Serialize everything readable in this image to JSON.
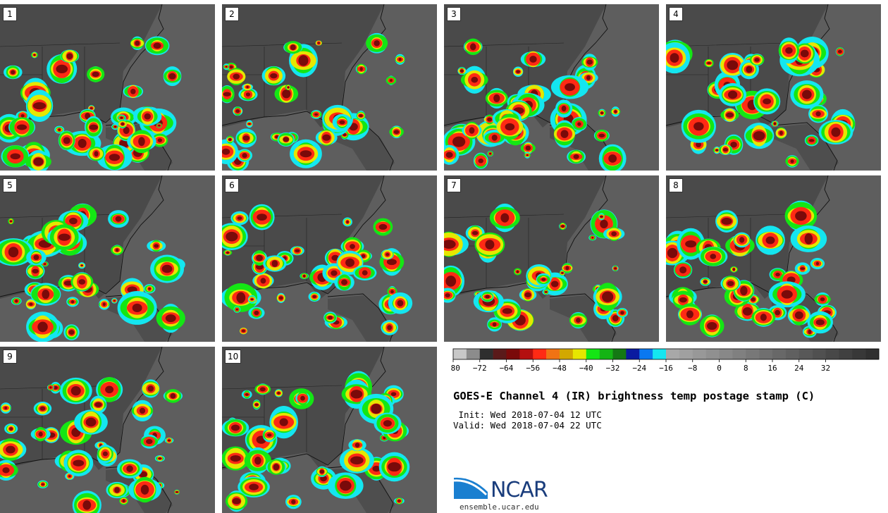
{
  "panels": [
    "1",
    "2",
    "3",
    "4",
    "5",
    "6",
    "7",
    "8",
    "9",
    "10"
  ],
  "colorbar": {
    "colors": [
      "#c8c8c8",
      "#8c8c8c",
      "#2e2e2e",
      "#5a1a1a",
      "#7a0a0a",
      "#b40f0f",
      "#ff2a14",
      "#f07314",
      "#d2a800",
      "#e6e600",
      "#14e614",
      "#14b414",
      "#147814",
      "#0a1aa0",
      "#0a78f0",
      "#14e6f0",
      "#a8a8a8",
      "#a0a0a0",
      "#989898",
      "#909090",
      "#888888",
      "#808080",
      "#787878",
      "#707070",
      "#686868",
      "#606060",
      "#585858",
      "#505050",
      "#484848",
      "#404040",
      "#383838",
      "#303030"
    ],
    "tick_labels": [
      "−80",
      "−72",
      "−64",
      "−56",
      "−48",
      "−40",
      "−32",
      "−24",
      "−16",
      "−8",
      "0",
      "8",
      "16",
      "24",
      "32"
    ]
  },
  "title": "GOES-E Channel 4 (IR) brightness temp postage stamp (C)",
  "init": " Init: Wed 2018-07-04 12 UTC",
  "valid": "Valid: Wed 2018-07-04 22 UTC",
  "logo": {
    "name": "NCAR",
    "site": "ensemble.ucar.edu",
    "color": "#1a3d7c",
    "swoosh": "#1a7fd0"
  }
}
